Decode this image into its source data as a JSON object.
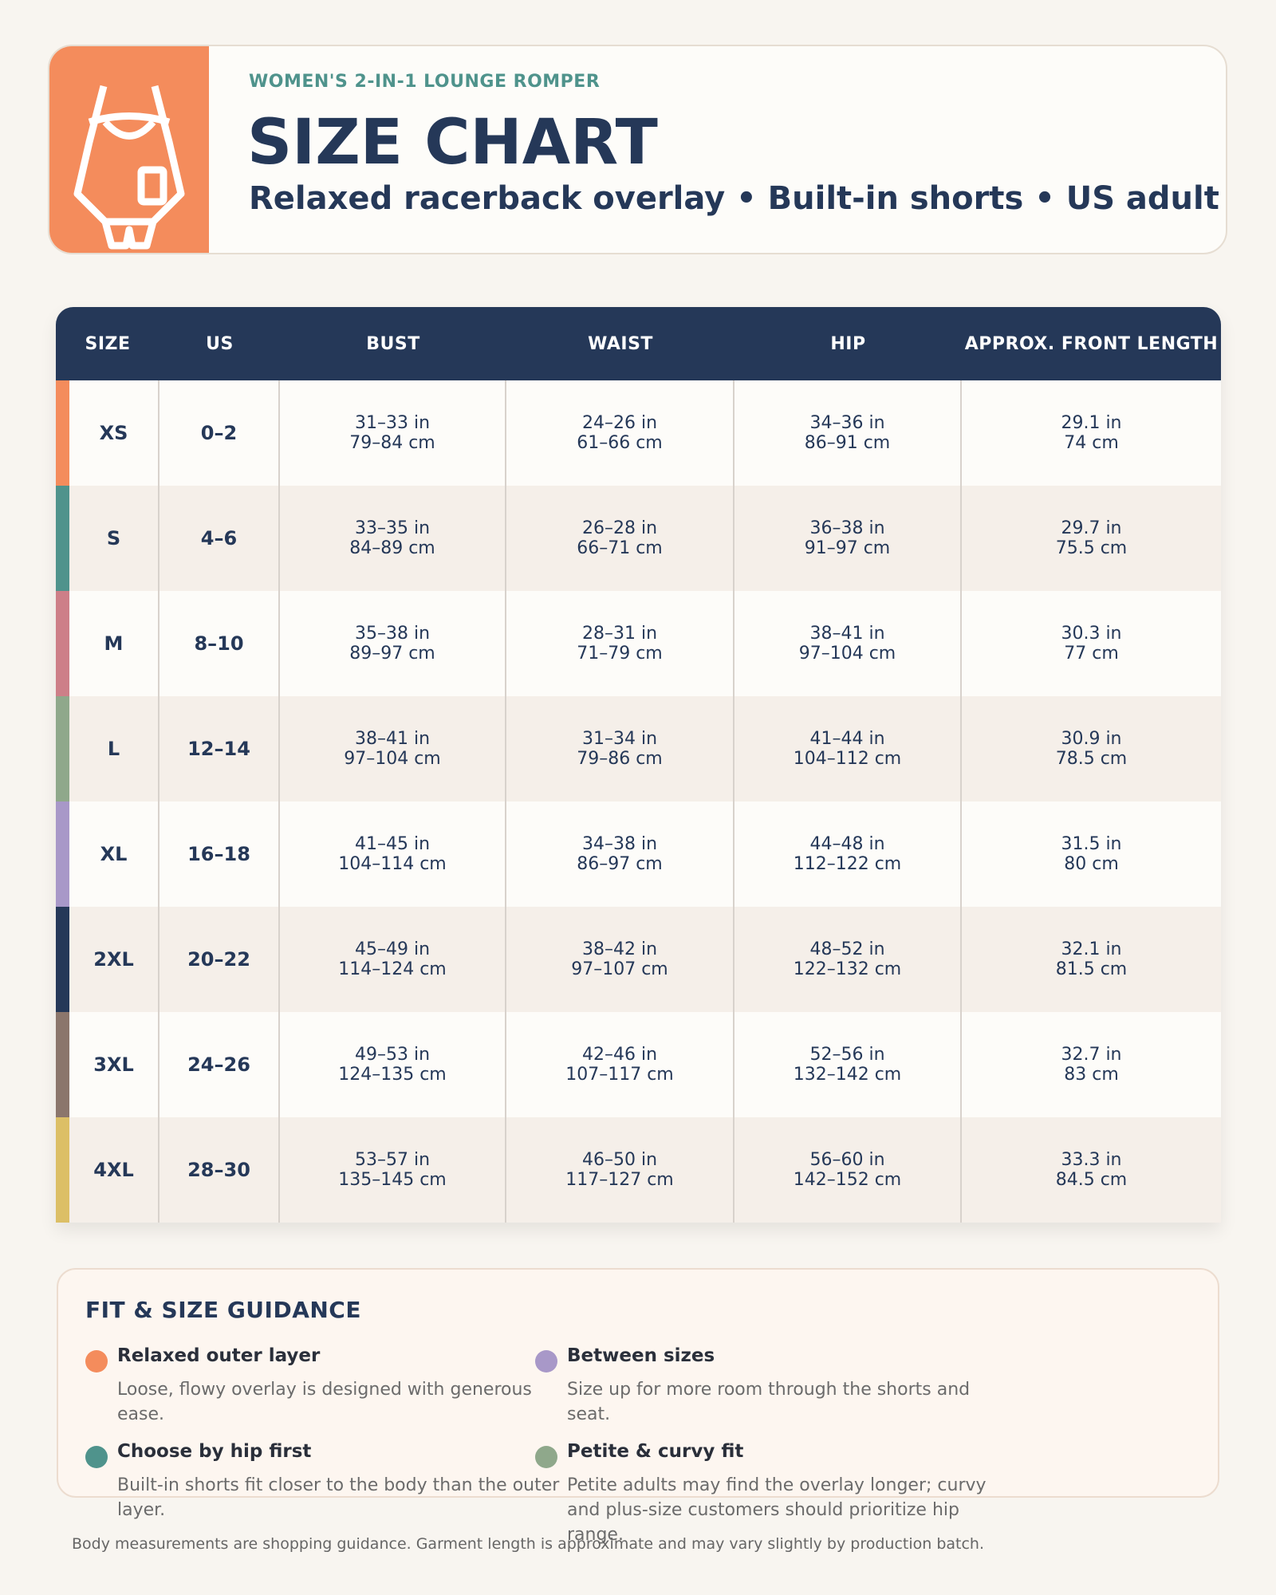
{
  "header": {
    "eyebrow": "WOMEN'S 2-IN-1 LOUNGE ROMPER",
    "title": "SIZE CHART",
    "subtitle": "Relaxed racerback overlay • Built-in shorts • US adult sizing"
  },
  "table": {
    "columns": [
      "SIZE",
      "US",
      "BUST",
      "WAIST",
      "HIP",
      "APPROX. FRONT LENGTH"
    ],
    "rows": [
      {
        "color": "#f48c5c",
        "size": "XS",
        "us": "0–2",
        "cells": [
          [
            "31–33 in",
            "79–84 cm"
          ],
          [
            "24–26 in",
            "61–66 cm"
          ],
          [
            "34–36 in",
            "86–91 cm"
          ],
          [
            "29.1 in",
            "74 cm"
          ]
        ]
      },
      {
        "color": "#4f938c",
        "size": "S",
        "us": "4–6",
        "cells": [
          [
            "33–35 in",
            "84–89 cm"
          ],
          [
            "26–28 in",
            "66–71 cm"
          ],
          [
            "36–38 in",
            "91–97 cm"
          ],
          [
            "29.7 in",
            "75.5 cm"
          ]
        ]
      },
      {
        "color": "#cd7f88",
        "size": "M",
        "us": "8–10",
        "cells": [
          [
            "35–38 in",
            "89–97 cm"
          ],
          [
            "28–31 in",
            "71–79 cm"
          ],
          [
            "38–41 in",
            "97–104 cm"
          ],
          [
            "30.3 in",
            "77 cm"
          ]
        ]
      },
      {
        "color": "#8fa88b",
        "size": "L",
        "us": "12–14",
        "cells": [
          [
            "38–41 in",
            "97–104 cm"
          ],
          [
            "31–34 in",
            "79–86 cm"
          ],
          [
            "41–44 in",
            "104–112 cm"
          ],
          [
            "30.9 in",
            "78.5 cm"
          ]
        ]
      },
      {
        "color": "#a898c8",
        "size": "XL",
        "us": "16–18",
        "cells": [
          [
            "41–45 in",
            "104–114 cm"
          ],
          [
            "34–38 in",
            "86–97 cm"
          ],
          [
            "44–48 in",
            "112–122 cm"
          ],
          [
            "31.5 in",
            "80 cm"
          ]
        ]
      },
      {
        "color": "#253858",
        "size": "2XL",
        "us": "20–22",
        "cells": [
          [
            "45–49 in",
            "114–124 cm"
          ],
          [
            "38–42 in",
            "97–107 cm"
          ],
          [
            "48–52 in",
            "122–132 cm"
          ],
          [
            "32.1 in",
            "81.5 cm"
          ]
        ]
      },
      {
        "color": "#8b766c",
        "size": "3XL",
        "us": "24–26",
        "cells": [
          [
            "49–53 in",
            "124–135 cm"
          ],
          [
            "42–46 in",
            "107–117 cm"
          ],
          [
            "52–56 in",
            "132–142 cm"
          ],
          [
            "32.7 in",
            "83 cm"
          ]
        ]
      },
      {
        "color": "#dcbf66",
        "size": "4XL",
        "us": "28–30",
        "cells": [
          [
            "53–57 in",
            "135–145 cm"
          ],
          [
            "46–50 in",
            "117–127 cm"
          ],
          [
            "56–60 in",
            "142–152 cm"
          ],
          [
            "33.3 in",
            "84.5 cm"
          ]
        ]
      }
    ]
  },
  "guidance": {
    "title": "FIT & SIZE GUIDANCE",
    "items": [
      {
        "color": "#f48c5c",
        "title": "Relaxed outer layer",
        "text": "Loose, flowy overlay is designed with generous ease."
      },
      {
        "color": "#a898c8",
        "title": "Between sizes",
        "text": "Size up for more room through the shorts and seat."
      },
      {
        "color": "#4f938c",
        "title": "Choose by hip first",
        "text": "Built-in shorts fit closer to the body than the outer layer."
      },
      {
        "color": "#8fa88b",
        "title": "Petite & curvy fit",
        "text": "Petite adults may find the overlay longer; curvy and plus-size customers should prioritize hip range."
      }
    ]
  },
  "footnote": "Body measurements are shopping guidance. Garment length is approximate and may vary slightly by production batch."
}
